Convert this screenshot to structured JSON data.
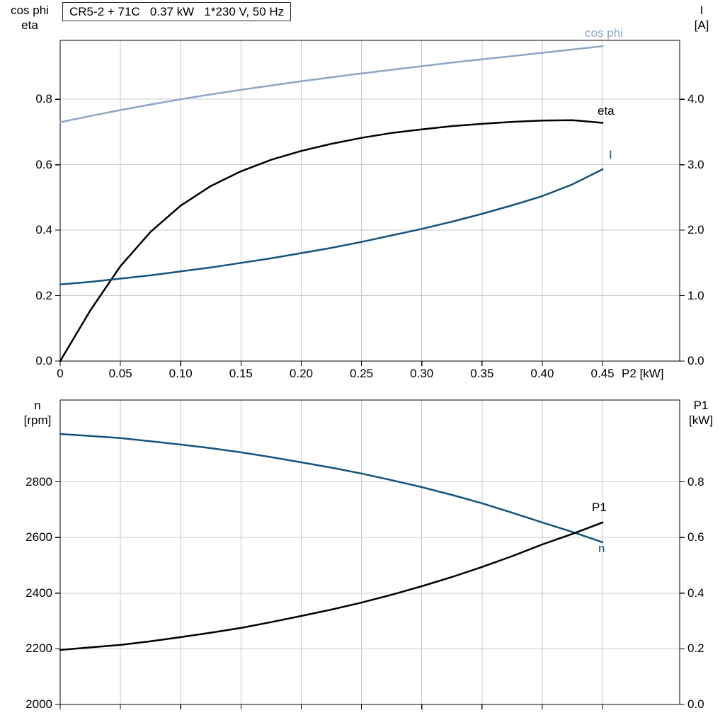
{
  "header": {
    "title_box": "CR5-2 + 71C   0.37 kW   1*230 V, 50 Hz"
  },
  "colors": {
    "light_blue": "#8ca6c3",
    "dark_blue": "#14537d",
    "black": "#000000",
    "grid": "#c9c9c9",
    "border": "#000000"
  },
  "axis_corner_labels": {
    "top_left_line1": "cos phi",
    "top_left_line2": "eta",
    "top_right_line1": "I",
    "top_right_line2": "[A]",
    "bottom_left_line1": "n",
    "bottom_left_line2": "[rpm]",
    "bottom_right_line1": "P1",
    "bottom_right_line2": "[kW]",
    "x_axis_label": "P2 [kW]"
  },
  "curve_labels": {
    "cos_phi": "cos phi",
    "eta": "eta",
    "current": "I",
    "p1": "P1",
    "n": "n"
  },
  "chart_data": [
    {
      "type": "line",
      "title": "CR5-2 + 71C   0.37 kW   1*230 V, 50 Hz",
      "xlabel": "P2 [kW]",
      "ylabel_left": "cos phi / eta",
      "ylabel_right": "I [A]",
      "xlim": [
        0,
        0.514
      ],
      "ylim_left": [
        0,
        0.98
      ],
      "ylim_right": [
        0,
        4.9
      ],
      "x_ticks": [
        0,
        0.05,
        0.1,
        0.15,
        0.2,
        0.25,
        0.3,
        0.35,
        0.4,
        0.45
      ],
      "x_tick_labels": [
        "0",
        "0.05",
        "0.10",
        "0.15",
        "0.20",
        "0.25",
        "0.30",
        "0.35",
        "0.40",
        "0.45"
      ],
      "show_x_tick_labels": true,
      "y_ticks_left": [
        0,
        0.2,
        0.4,
        0.6,
        0.8
      ],
      "y_tick_labels_left": [
        "0.0",
        "0.2",
        "0.4",
        "0.6",
        "0.8"
      ],
      "y_ticks_right": [
        0,
        1,
        2,
        3,
        4
      ],
      "y_tick_labels_right": [
        "0.0",
        "1.0",
        "2.0",
        "3.0",
        "4.0"
      ],
      "x": [
        0,
        0.025,
        0.05,
        0.075,
        0.1,
        0.125,
        0.15,
        0.175,
        0.2,
        0.225,
        0.25,
        0.275,
        0.3,
        0.325,
        0.35,
        0.375,
        0.4,
        0.425,
        0.45
      ],
      "series": [
        {
          "name": "cos phi",
          "axis": "left",
          "color": "light_blue",
          "values": [
            0.73,
            0.749,
            0.767,
            0.784,
            0.8,
            0.815,
            0.829,
            0.842,
            0.855,
            0.867,
            0.879,
            0.89,
            0.901,
            0.912,
            0.922,
            0.932,
            0.942,
            0.952,
            0.962
          ]
        },
        {
          "name": "eta",
          "axis": "left",
          "color": "black",
          "values": [
            0,
            0.155,
            0.29,
            0.395,
            0.475,
            0.535,
            0.58,
            0.615,
            0.642,
            0.664,
            0.682,
            0.697,
            0.708,
            0.718,
            0.725,
            0.731,
            0.735,
            0.736,
            0.728
          ]
        },
        {
          "name": "I",
          "axis": "right",
          "color": "dark_blue",
          "values": [
            1.17,
            1.21,
            1.26,
            1.31,
            1.37,
            1.43,
            1.5,
            1.57,
            1.65,
            1.73,
            1.82,
            1.92,
            2.02,
            2.13,
            2.25,
            2.38,
            2.52,
            2.7,
            2.93
          ]
        }
      ]
    },
    {
      "type": "line",
      "title": "",
      "xlabel": "P2 [kW]",
      "ylabel_left": "n [rpm]",
      "ylabel_right": "P1 [kW]",
      "xlim": [
        0,
        0.514
      ],
      "ylim_left": [
        2000,
        3094
      ],
      "ylim_right": [
        0,
        1.094
      ],
      "x_ticks": [
        0,
        0.05,
        0.1,
        0.15,
        0.2,
        0.25,
        0.3,
        0.35,
        0.4,
        0.45
      ],
      "x_tick_labels": [
        "",
        "",
        "",
        "",
        "",
        "",
        "",
        "",
        "",
        ""
      ],
      "show_x_tick_labels": false,
      "y_ticks_left": [
        2000,
        2200,
        2400,
        2600,
        2800
      ],
      "y_tick_labels_left": [
        "2000",
        "2200",
        "2400",
        "2600",
        "2800"
      ],
      "y_ticks_right": [
        0,
        0.2,
        0.4,
        0.6,
        0.8
      ],
      "y_tick_labels_right": [
        "0.0",
        "0.2",
        "0.4",
        "0.6",
        "0.8"
      ],
      "x": [
        0,
        0.025,
        0.05,
        0.075,
        0.1,
        0.125,
        0.15,
        0.175,
        0.2,
        0.225,
        0.25,
        0.275,
        0.3,
        0.325,
        0.35,
        0.375,
        0.4,
        0.425,
        0.45
      ],
      "series": [
        {
          "name": "n",
          "axis": "left",
          "color": "dark_blue",
          "values": [
            2972,
            2965,
            2957,
            2946,
            2934,
            2921,
            2906,
            2889,
            2870,
            2851,
            2830,
            2806,
            2781,
            2753,
            2723,
            2689,
            2654,
            2620,
            2583
          ]
        },
        {
          "name": "P1",
          "axis": "right",
          "color": "black",
          "values": [
            0.196,
            0.205,
            0.214,
            0.227,
            0.242,
            0.258,
            0.275,
            0.296,
            0.318,
            0.341,
            0.366,
            0.394,
            0.425,
            0.458,
            0.494,
            0.533,
            0.575,
            0.613,
            0.654
          ]
        }
      ]
    }
  ]
}
